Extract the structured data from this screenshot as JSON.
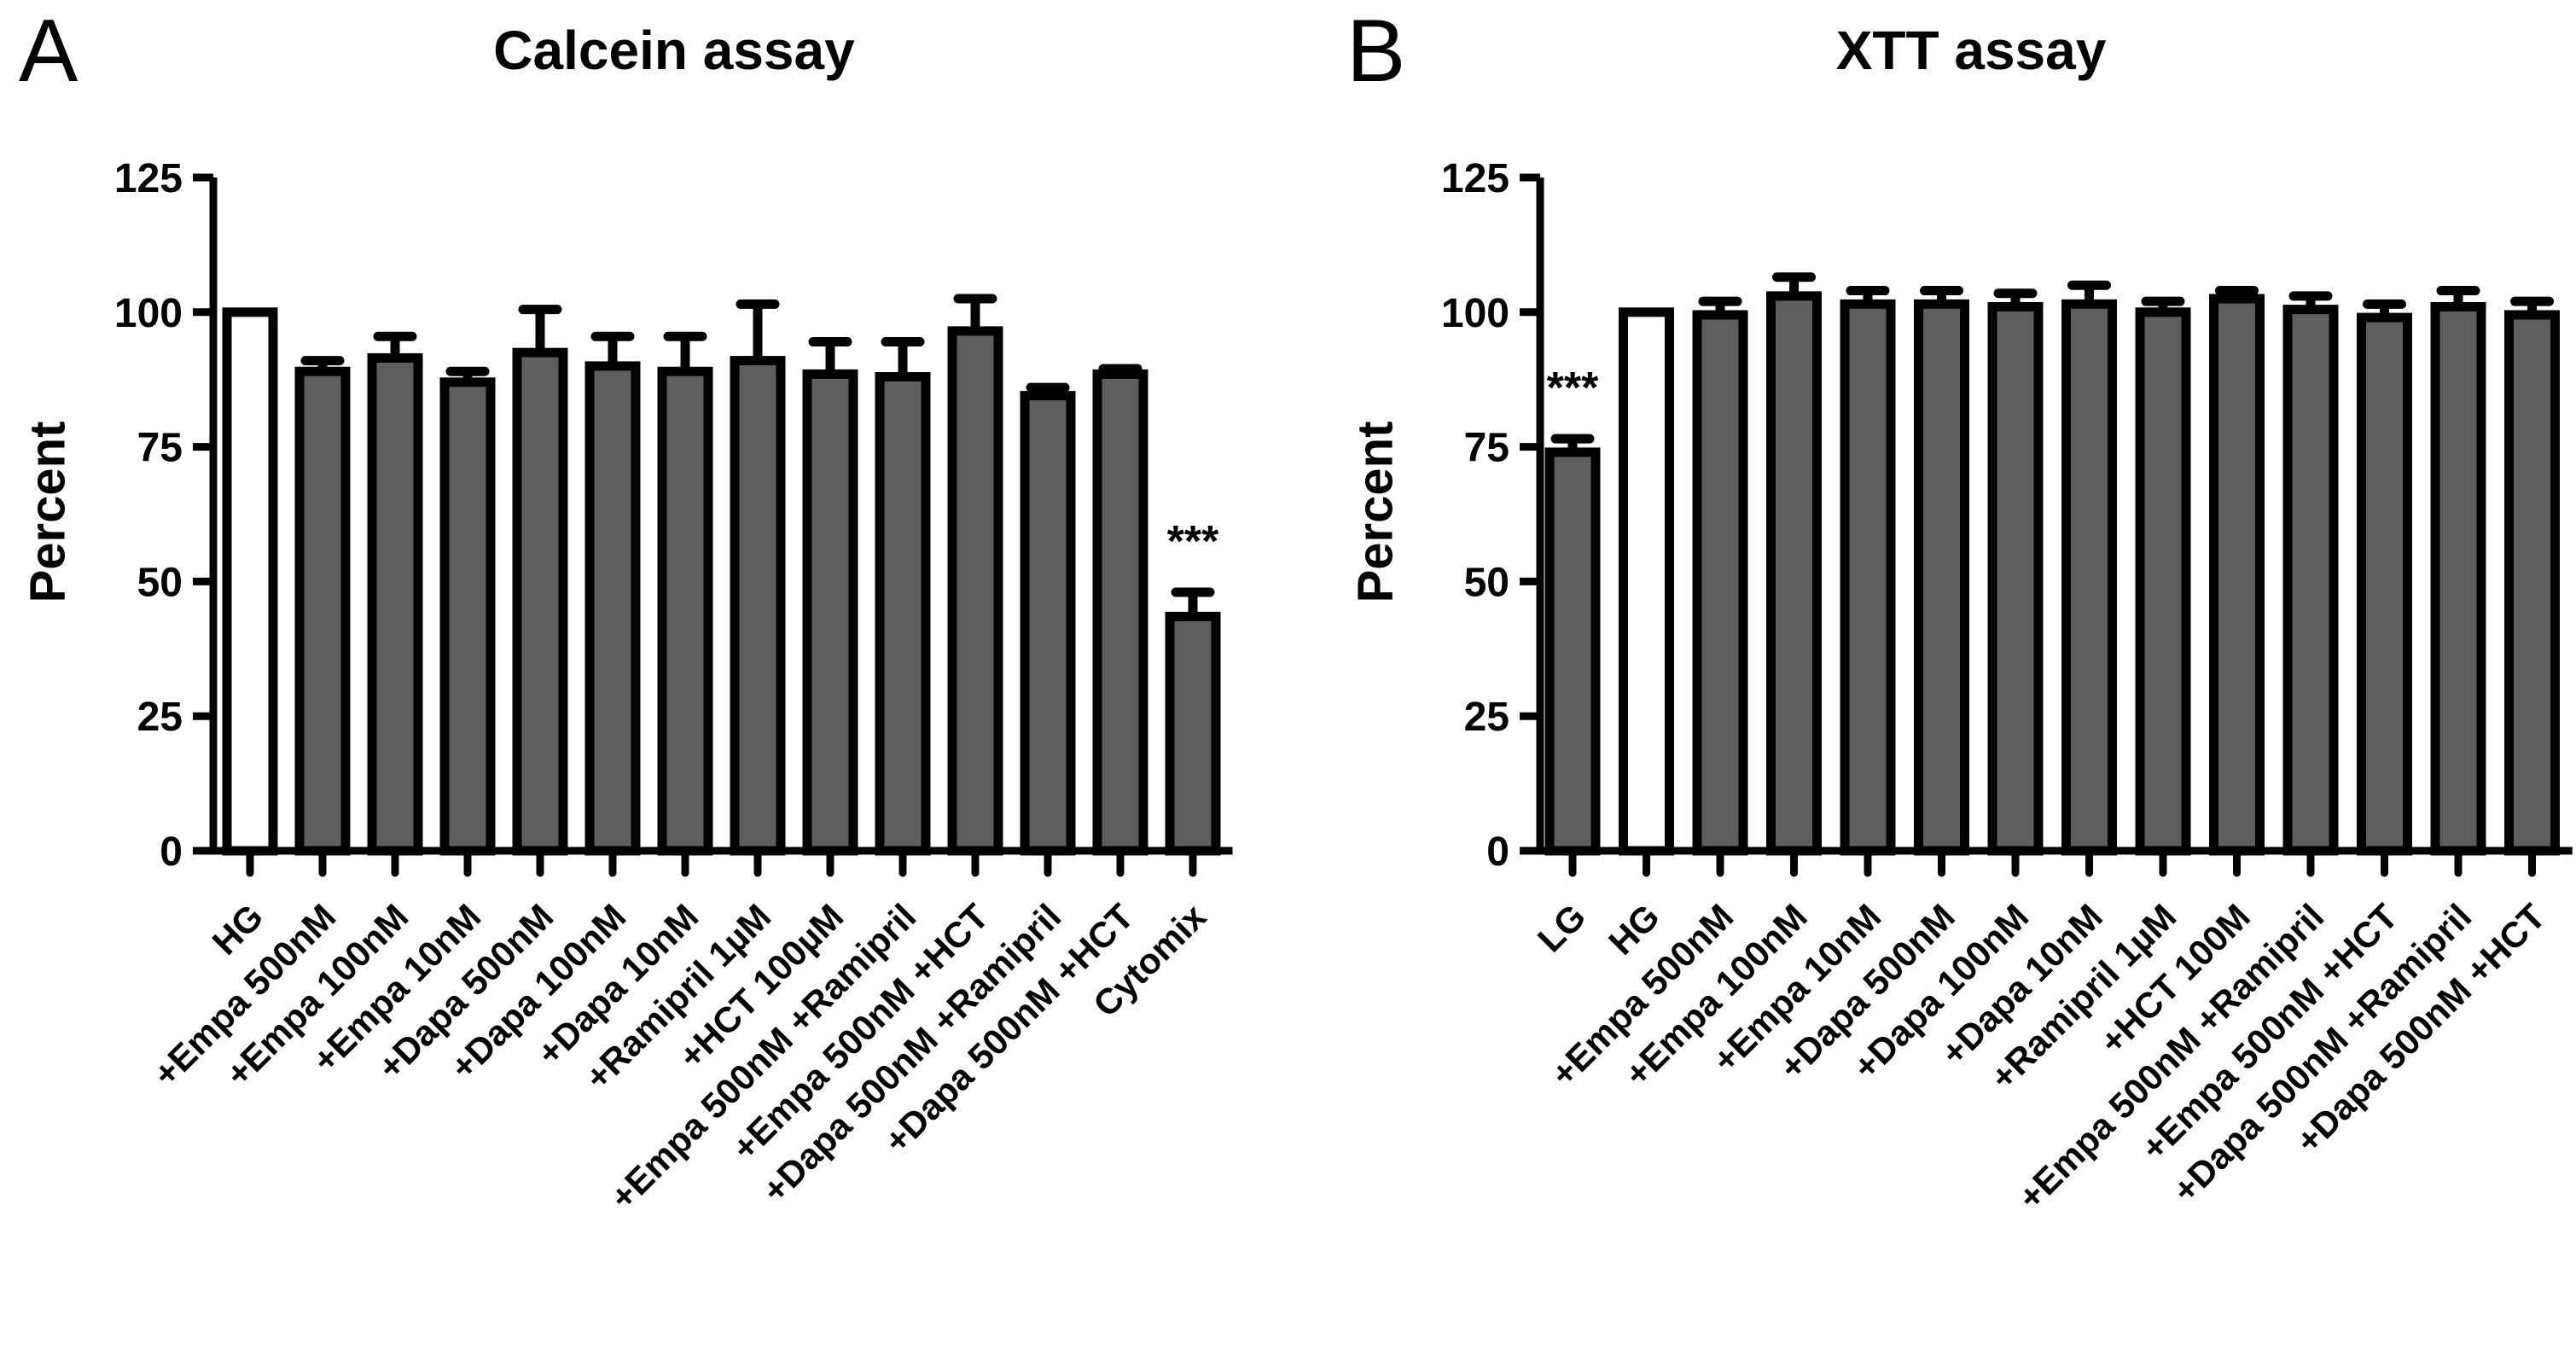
{
  "figure": {
    "panels": [
      {
        "letter": "A",
        "title": "Calcein assay",
        "ylabel": "Percent"
      },
      {
        "letter": "B",
        "title": "XTT assay",
        "ylabel": "Percent"
      }
    ]
  },
  "chart_data": [
    {
      "type": "bar",
      "panel_letter": "A",
      "title": "Calcein assay",
      "xlabel": "",
      "ylabel": "Percent",
      "ylim": [
        0,
        125
      ],
      "yticks": [
        0,
        25,
        50,
        75,
        100,
        125
      ],
      "grid": false,
      "legend": null,
      "bar_outline_color": "#000000",
      "bar_fill_default": "#5e5e5e",
      "categories": [
        "HG",
        "+Empa 500nM",
        "+Empa 100nM",
        "+Empa 10nM",
        "+Dapa 500nM",
        "+Dapa 100nM",
        "+Dapa 10nM",
        "+Ramipril 1µM",
        "+HCT 100µM",
        "+Empa 500nM +Ramipril",
        "+Empa 500nM +HCT",
        "+Dapa 500nM +Ramipril",
        "+Dapa 500nM +HCT",
        "Cytomix"
      ],
      "values": [
        100,
        89,
        91.5,
        87,
        92.5,
        90,
        89,
        91,
        88.5,
        88,
        96.5,
        84.5,
        88.5,
        43.5
      ],
      "errors": [
        0,
        2,
        4,
        2,
        8,
        5.5,
        6.5,
        10.5,
        6,
        6.5,
        6,
        1.5,
        1,
        4.5
      ],
      "bar_colors": [
        "#ffffff",
        "#5e5e5e",
        "#5e5e5e",
        "#5e5e5e",
        "#5e5e5e",
        "#5e5e5e",
        "#5e5e5e",
        "#5e5e5e",
        "#5e5e5e",
        "#5e5e5e",
        "#5e5e5e",
        "#5e5e5e",
        "#5e5e5e",
        "#5e5e5e"
      ],
      "significance": [
        {
          "category": "Cytomix",
          "label": "***"
        }
      ]
    },
    {
      "type": "bar",
      "panel_letter": "B",
      "title": "XTT assay",
      "xlabel": "",
      "ylabel": "Percent",
      "ylim": [
        0,
        125
      ],
      "yticks": [
        0,
        25,
        50,
        75,
        100,
        125
      ],
      "grid": false,
      "legend": null,
      "bar_outline_color": "#000000",
      "bar_fill_default": "#5e5e5e",
      "categories": [
        "LG",
        "HG",
        "+Empa 500nM",
        "+Empa 100nM",
        "+Empa 10nM",
        "+Dapa 500nM",
        "+Dapa 100nM",
        "+Dapa 10nM",
        "+Ramipril 1µM",
        "+HCT 100M",
        "+Empa 500nM +Ramipril",
        "+Empa 500nM +HCT",
        "+Dapa 500nM +Ramipril",
        "+Dapa 500nM +HCT"
      ],
      "values": [
        74,
        100,
        99.5,
        103,
        101.5,
        101.5,
        101,
        101.5,
        100,
        102.5,
        100.5,
        99,
        101,
        99.5
      ],
      "errors": [
        2.5,
        0,
        2.5,
        3.5,
        2.5,
        2.5,
        2.5,
        3.5,
        2,
        1.5,
        2.5,
        2.5,
        3,
        2.5
      ],
      "bar_colors": [
        "#5e5e5e",
        "#ffffff",
        "#5e5e5e",
        "#5e5e5e",
        "#5e5e5e",
        "#5e5e5e",
        "#5e5e5e",
        "#5e5e5e",
        "#5e5e5e",
        "#5e5e5e",
        "#5e5e5e",
        "#5e5e5e",
        "#5e5e5e",
        "#5e5e5e"
      ],
      "significance": [
        {
          "category": "LG",
          "label": "***"
        }
      ]
    }
  ]
}
